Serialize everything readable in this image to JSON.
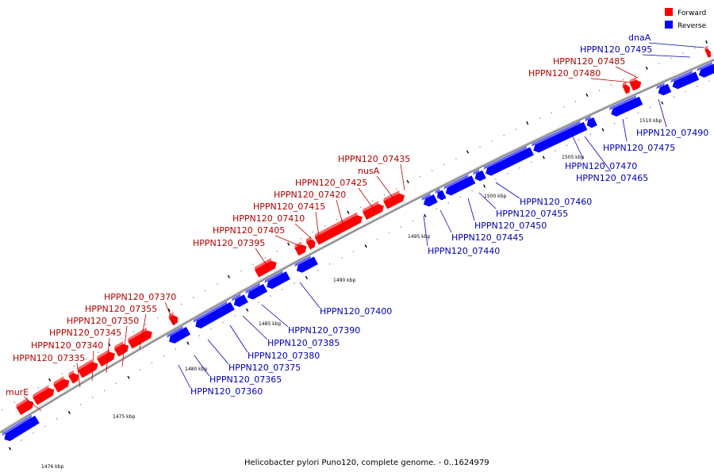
{
  "caption": "Helicobacter pylori Puno120, complete genome. - 0..1624979",
  "legend": [
    {
      "name": "Forward",
      "color": "#ff0000"
    },
    {
      "name": "Reverse",
      "color": "#0000ff"
    }
  ],
  "colors": {
    "forward": "#ff0000",
    "reverse": "#0000ff",
    "backbone": "#888888",
    "forward_label": "#b30000",
    "reverse_label": "#0000b3"
  },
  "ticks": [
    "1475 kbp",
    "1476 kbp",
    "1480 kbp",
    "1485 kbp",
    "1490 kbp",
    "1495 kbp",
    "1500 kbp",
    "1505 kbp",
    "1510 kbp"
  ],
  "forward_labels": [
    "murE",
    "HPPN120_07335",
    "HPPN120_07340",
    "HPPN120_07345",
    "HPPN120_07350",
    "HPPN120_07355",
    "HPPN120_07370",
    "HPPN120_07395",
    "HPPN120_07405",
    "HPPN120_07410",
    "HPPN120_07415",
    "HPPN120_07420",
    "HPPN120_07425",
    "nusA",
    "HPPN120_07435",
    "HPPN120_07480",
    "HPPN120_07485"
  ],
  "reverse_labels": [
    "dnaA",
    "HPPN120_07495",
    "HPPN120_07490",
    "HPPN120_07475",
    "HPPN120_07470",
    "HPPN120_07465",
    "HPPN120_07460",
    "HPPN120_07455",
    "HPPN120_07450",
    "HPPN120_07445",
    "HPPN120_07440",
    "HPPN120_07400",
    "HPPN120_07390",
    "HPPN120_07385",
    "HPPN120_07380",
    "HPPN120_07375",
    "HPPN120_07365",
    "HPPN120_07360"
  ]
}
